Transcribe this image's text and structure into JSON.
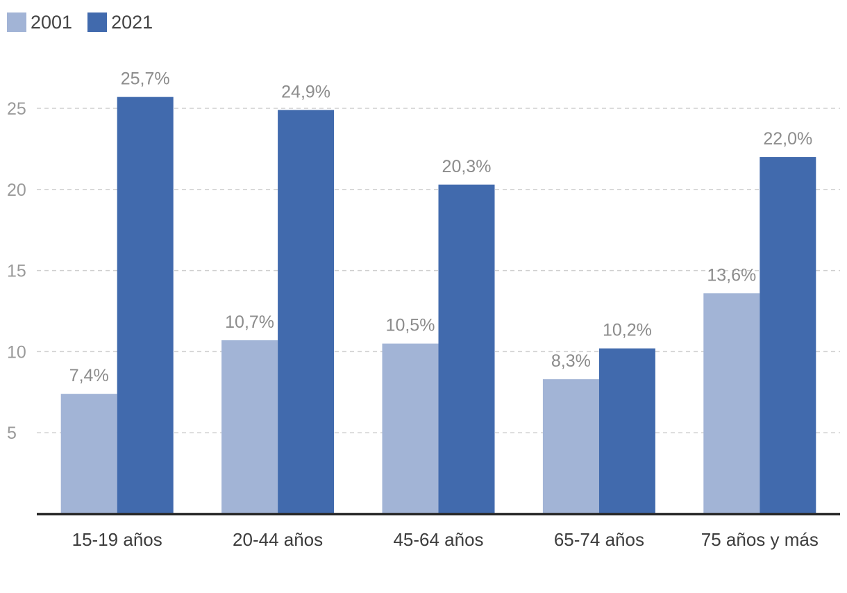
{
  "legend": [
    {
      "label": "2001",
      "color": "#a2b4d6"
    },
    {
      "label": "2021",
      "color": "#416aad"
    }
  ],
  "chart_data": {
    "type": "bar",
    "categories": [
      "15-19 años",
      "20-44 años",
      "45-64 años",
      "65-74 años",
      "75 años y más"
    ],
    "series": [
      {
        "name": "2001",
        "color": "#a2b4d6",
        "values": [
          7.4,
          10.7,
          10.5,
          8.3,
          13.6
        ],
        "labels": [
          "7,4%",
          "10,7%",
          "10,5%",
          "8,3%",
          "13,6%"
        ]
      },
      {
        "name": "2021",
        "color": "#416aad",
        "values": [
          25.7,
          24.9,
          20.3,
          10.2,
          22.0
        ],
        "labels": [
          "25,7%",
          "24,9%",
          "20,3%",
          "10,2%",
          "22,0%"
        ]
      }
    ],
    "yticks": [
      5,
      10,
      15,
      20,
      25
    ],
    "ylim": [
      0,
      25.7
    ],
    "grid": true,
    "legend_position": "top-left"
  }
}
